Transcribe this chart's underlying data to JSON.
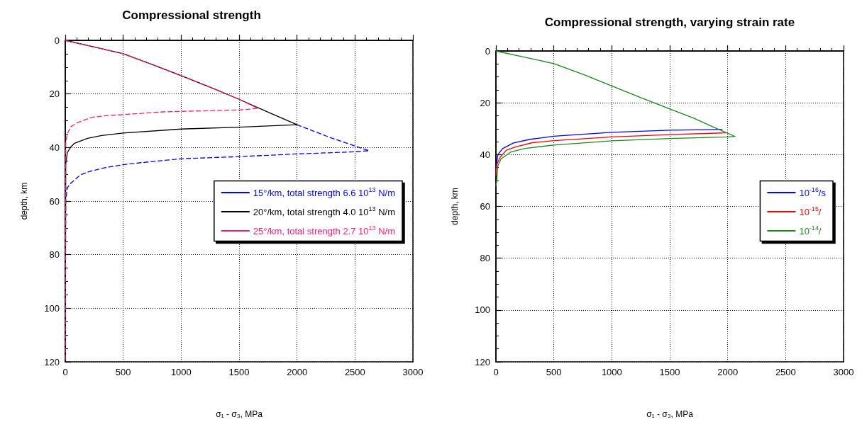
{
  "chart_data": [
    {
      "type": "line",
      "title": "Compressional strength",
      "xlabel": "σ₁ - σ₃, MPa",
      "ylabel": "depth, km",
      "xlim": [
        0,
        3000
      ],
      "xticks": [
        0,
        500,
        1000,
        1500,
        2000,
        2500,
        3000
      ],
      "ylim": [
        120,
        0
      ],
      "yticks": [
        0,
        20,
        40,
        60,
        80,
        100,
        120
      ],
      "grid": true,
      "legend": "right",
      "marker": "none",
      "series": [
        {
          "name": "15°/km, total strength 6.6 10$^{13}$ N/m",
          "color": "#0000ff",
          "line_style": "dashed",
          "x": [
            2000,
            2300,
            2622,
            2500,
            2000,
            1500,
            1000,
            620,
            500,
            335,
            212,
            131,
            49,
            18,
            4,
            0
          ],
          "values": [
            31.5,
            36.5,
            41.2,
            41.6,
            42.4,
            43.4,
            44.2,
            45.8,
            46.4,
            47.6,
            48.9,
            50.2,
            53.3,
            55,
            59.4,
            120
          ]
        },
        {
          "name": "20°/km, total strength 4.0 10$^{13}$ N/m",
          "color": "#000000",
          "line_style": "solid",
          "x": [
            0,
            250,
            500,
            750,
            1000,
            1250,
            1500,
            1750,
            2000,
            1500,
            1000,
            500,
            315,
            192,
            80,
            49,
            18,
            4,
            0
          ],
          "values": [
            0,
            2.5,
            5,
            9,
            13.2,
            17.5,
            22,
            26.8,
            31.5,
            32.4,
            33.1,
            34.6,
            35.5,
            36.6,
            38.4,
            39.7,
            41.9,
            46.3,
            120
          ]
        },
        {
          "name": "25°/km, total strength 2.7 10$^{13}$ N/m",
          "color": "#ff1a6e",
          "line_style": "dashed",
          "x": [
            0,
            250,
            500,
            750,
            1000,
            1250,
            1500,
            1663,
            1500,
            1000,
            846,
            539,
            355,
            233,
            110,
            49,
            18,
            4,
            0
          ],
          "values": [
            0,
            2.5,
            5,
            9,
            13.2,
            17.5,
            22,
            25.4,
            26.0,
            26.5,
            26.7,
            27.6,
            28.1,
            28.7,
            30.6,
            32.2,
            34.8,
            38.4,
            120
          ]
        }
      ]
    },
    {
      "type": "line",
      "title": "Compressional strength, varying strain rate",
      "xlabel": "σ₁ - σ₃, MPa",
      "ylabel": "depth, km",
      "xlim": [
        0,
        3000
      ],
      "xticks": [
        0,
        500,
        1000,
        1500,
        2000,
        2500,
        3000
      ],
      "ylim": [
        120,
        0
      ],
      "yticks": [
        0,
        20,
        40,
        60,
        80,
        100,
        120
      ],
      "grid": true,
      "legend": "right",
      "marker": "none",
      "series": [
        {
          "name": "10$^{-16}$/s",
          "color": "#0000ff",
          "line_style": "solid",
          "x": [
            1952,
            1500,
            1000,
            500,
            295,
            152,
            58,
            17,
            3,
            0
          ],
          "values": [
            30.3,
            30.6,
            31.4,
            32.9,
            34.1,
            35.5,
            37.7,
            40,
            44.5,
            46
          ]
        },
        {
          "name": "10$^{-15}$/",
          "color": "#ff0000",
          "line_style": "solid",
          "x": [
            1981,
            1500,
            1000,
            500,
            315,
            172,
            90,
            37,
            9,
            2,
            0
          ],
          "values": [
            31.6,
            32.3,
            33.2,
            34.6,
            35.4,
            37,
            38.3,
            41,
            43.7,
            46.4,
            48
          ]
        },
        {
          "name": "10$^{-14}$/",
          "color": "#1a8a1a",
          "line_style": "solid",
          "x": [
            0,
            250,
            500,
            750,
            1000,
            1250,
            1500,
            1700,
            1889,
            2064,
            2000,
            1500,
            1000,
            500,
            252,
            128,
            45,
            17,
            6,
            0
          ],
          "values": [
            0,
            2.4,
            4.9,
            9,
            13.5,
            18,
            22.4,
            25.8,
            29.6,
            33,
            33.2,
            33.8,
            34.7,
            36.3,
            37.6,
            39,
            41.6,
            44.3,
            50.6,
            52
          ]
        }
      ]
    }
  ]
}
